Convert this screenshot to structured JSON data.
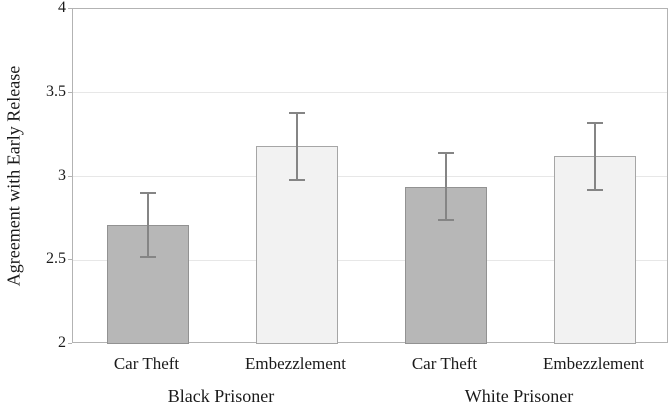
{
  "chart_data": {
    "type": "bar",
    "title": "",
    "xlabel": "",
    "ylabel": "Agreement with Early Release",
    "ylim": [
      2,
      4
    ],
    "yticks": [
      2,
      2.5,
      3,
      3.5,
      4
    ],
    "grid": "horizontal",
    "legend": "none",
    "error_bars": true,
    "groups": [
      {
        "label": "Black Prisoner",
        "bars": [
          {
            "label": "Car Theft",
            "value": 2.71,
            "error": 0.19,
            "fill": "dark"
          },
          {
            "label": "Embezzlement",
            "value": 3.18,
            "error": 0.2,
            "fill": "light"
          }
        ]
      },
      {
        "label": "White Prisoner",
        "bars": [
          {
            "label": "Car Theft",
            "value": 2.94,
            "error": 0.2,
            "fill": "dark"
          },
          {
            "label": "Embezzlement",
            "value": 3.12,
            "error": 0.2,
            "fill": "light"
          }
        ]
      }
    ],
    "colors": {
      "dark_fill": "#b7b7b7",
      "dark_border": "#929292",
      "light_fill": "#f2f2f2",
      "light_border": "#a6a6a6",
      "error_bar": "#858585",
      "gridline": "#e7e7e7",
      "plot_border": "#b3b3b3",
      "text": "#1a1a1a"
    }
  }
}
